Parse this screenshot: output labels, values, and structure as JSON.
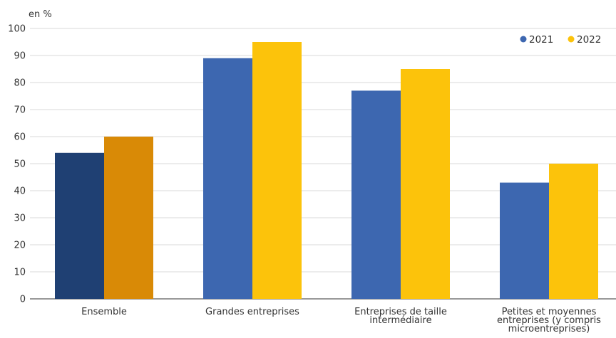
{
  "chart_data": {
    "type": "bar",
    "ylabel": "en %",
    "ylim": [
      0,
      100
    ],
    "ytick_step": 10,
    "grid": true,
    "legend_position": "top-right",
    "categories": [
      [
        "Ensemble"
      ],
      [
        "Grandes entreprises"
      ],
      [
        "Entreprises de taille",
        "intermédiaire"
      ],
      [
        "Petites et moyennes",
        "entreprises (y compris",
        "microentreprises)"
      ]
    ],
    "series": [
      {
        "name": "2021",
        "values": [
          54,
          89,
          77,
          43
        ],
        "color": "#3d67b0",
        "highlight_color": "#1f4073"
      },
      {
        "name": "2022",
        "values": [
          60,
          95,
          85,
          50
        ],
        "color": "#fcc30b",
        "highlight_color": "#d98a06"
      }
    ],
    "highlight_category_index": 0
  }
}
